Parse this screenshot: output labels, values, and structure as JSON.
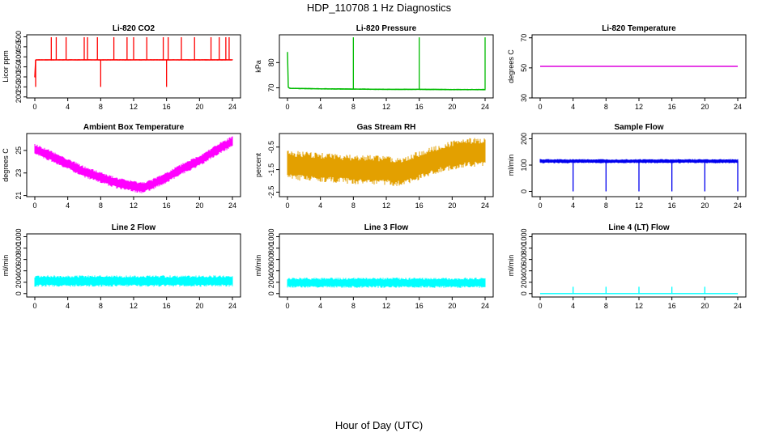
{
  "page": {
    "title": "HDP_110708  1 Hz Diagnostics",
    "xlabel": "Hour of Day (UTC)"
  },
  "chart_data": [
    {
      "type": "line",
      "title": "Li-820 CO2",
      "ylabel": "Licor ppm",
      "color": "#ff0000",
      "xlim": [
        0,
        24
      ],
      "ylim": [
        195,
        510
      ],
      "x_ticks": [
        0,
        4,
        8,
        12,
        16,
        20,
        24
      ],
      "y_ticks": [
        200,
        250,
        300,
        350,
        400,
        450,
        500
      ],
      "series": [
        {
          "x": [
            0,
            0.1,
            0.2,
            1,
            2,
            3,
            4,
            5,
            6,
            7,
            8,
            9,
            10,
            11,
            12,
            13,
            14,
            15,
            16,
            17,
            18,
            19,
            20,
            21,
            22,
            23,
            24
          ],
          "y": [
            300,
            385,
            385,
            385,
            385,
            385,
            385,
            385,
            385,
            385,
            385,
            385,
            385,
            385,
            385,
            385,
            385,
            385,
            385,
            385,
            385,
            385,
            385,
            385,
            385,
            385,
            385
          ]
        }
      ],
      "noise": 3,
      "spikes": [
        2,
        2.6,
        3.8,
        6,
        6.4,
        7.6,
        9.6,
        11.2,
        12,
        13.6,
        15.6,
        16.2,
        17.8,
        19.4,
        21.4,
        22.4,
        23.2,
        23.6
      ],
      "spike_to": 498,
      "drops": [
        0.1,
        8,
        16
      ],
      "drop_to": 250
    },
    {
      "type": "line",
      "title": "Li-820 Pressure",
      "ylabel": "kPa",
      "color": "#00bb00",
      "xlim": [
        0,
        24
      ],
      "ylim": [
        66,
        91
      ],
      "x_ticks": [
        0,
        4,
        8,
        12,
        16,
        20,
        24
      ],
      "y_ticks": [
        70,
        80
      ],
      "series": [
        {
          "x": [
            0,
            0.05,
            0.1,
            0.3,
            4,
            8,
            12,
            16,
            20,
            24
          ],
          "y": [
            84,
            70,
            70.2,
            69.8,
            69.6,
            69.5,
            69.4,
            69.4,
            69.3,
            69.3
          ]
        }
      ],
      "noise": 0.3,
      "spikes": [
        8,
        16,
        24
      ],
      "spike_to": 90,
      "drops": [],
      "drop_to": null
    },
    {
      "type": "line",
      "title": "Li-820 Temperature",
      "ylabel": "degrees C",
      "color": "#dd00dd",
      "xlim": [
        0,
        24
      ],
      "ylim": [
        30,
        72
      ],
      "x_ticks": [
        0,
        4,
        8,
        12,
        16,
        20,
        24
      ],
      "y_ticks": [
        30,
        50,
        70
      ],
      "series": [
        {
          "x": [
            0,
            24
          ],
          "y": [
            51,
            51
          ]
        }
      ],
      "noise": 0,
      "spikes": [],
      "spike_to": null,
      "drops": [],
      "drop_to": null
    },
    {
      "type": "line",
      "title": "Ambient Box Temperature",
      "ylabel": "degrees C",
      "color": "#ff00ff",
      "xlim": [
        0,
        24
      ],
      "ylim": [
        20.9,
        26.5
      ],
      "x_ticks": [
        0,
        4,
        8,
        12,
        16,
        20,
        24
      ],
      "y_ticks": [
        21,
        23,
        25
      ],
      "series": [
        {
          "x": [
            0,
            2,
            4,
            6,
            8,
            10,
            12,
            13,
            14,
            16,
            18,
            20,
            22,
            24
          ],
          "y": [
            25.1,
            24.5,
            23.8,
            23.1,
            22.6,
            22.1,
            21.8,
            21.7,
            21.9,
            22.6,
            23.4,
            24.1,
            25.0,
            25.8
          ]
        }
      ],
      "noise": 0.5,
      "spikes": [],
      "spike_to": null,
      "drops": [],
      "drop_to": null
    },
    {
      "type": "line",
      "title": "Gas Stream RH",
      "ylabel": "percent",
      "color": "#e3a000",
      "xlim": [
        0,
        24
      ],
      "ylim": [
        -2.7,
        0.1
      ],
      "x_ticks": [
        0,
        4,
        8,
        12,
        16,
        20,
        24
      ],
      "y_ticks": [
        -2.5,
        -1.5,
        -0.5
      ],
      "series": [
        {
          "x": [
            0,
            2,
            4,
            6,
            8,
            10,
            12,
            14,
            15,
            17,
            19,
            21,
            22,
            24
          ],
          "y": [
            -1.3,
            -1.35,
            -1.4,
            -1.45,
            -1.5,
            -1.5,
            -1.55,
            -1.6,
            -1.45,
            -1.2,
            -0.95,
            -0.8,
            -0.75,
            -0.75
          ]
        }
      ],
      "noise": 0.65,
      "spikes": [],
      "spike_to": null,
      "drops": [],
      "drop_to": null
    },
    {
      "type": "line",
      "title": "Sample Flow",
      "ylabel": "ml/min",
      "color": "#0000ee",
      "xlim": [
        0,
        24
      ],
      "ylim": [
        -20,
        220
      ],
      "x_ticks": [
        0,
        4,
        8,
        12,
        16,
        20,
        24
      ],
      "y_ticks": [
        0,
        100,
        200
      ],
      "series": [
        {
          "x": [
            0,
            24
          ],
          "y": [
            115,
            115
          ]
        }
      ],
      "noise": 8,
      "spikes": [],
      "spike_to": null,
      "drops": [
        4,
        8,
        12,
        16,
        20,
        24
      ],
      "drop_to": 0
    },
    {
      "type": "line",
      "title": "Line 2 Flow",
      "ylabel": "ml/min",
      "color": "#00ffff",
      "xlim": [
        0,
        24
      ],
      "ylim": [
        -60,
        1050
      ],
      "x_ticks": [
        0,
        4,
        8,
        12,
        16,
        20,
        24
      ],
      "y_ticks": [
        0,
        200,
        400,
        600,
        800,
        1000
      ],
      "series": [
        {
          "x": [
            0,
            24
          ],
          "y": [
            220,
            220
          ]
        }
      ],
      "noise": 100,
      "spikes": [],
      "spike_to": null,
      "drops": [],
      "drop_to": null
    },
    {
      "type": "line",
      "title": "Line 3 Flow",
      "ylabel": "ml/min",
      "color": "#00ffff",
      "xlim": [
        0,
        24
      ],
      "ylim": [
        -60,
        1050
      ],
      "x_ticks": [
        0,
        4,
        8,
        12,
        16,
        20,
        24
      ],
      "y_ticks": [
        0,
        200,
        400,
        600,
        800,
        1000
      ],
      "series": [
        {
          "x": [
            0,
            24
          ],
          "y": [
            190,
            190
          ]
        }
      ],
      "noise": 90,
      "spikes": [],
      "spike_to": null,
      "drops": [],
      "drop_to": null
    },
    {
      "type": "line",
      "title": "Line 4 (LT) Flow",
      "ylabel": "ml/min",
      "color": "#00ffff",
      "xlim": [
        0,
        24
      ],
      "ylim": [
        -60,
        1050
      ],
      "x_ticks": [
        0,
        4,
        8,
        12,
        16,
        20,
        24
      ],
      "y_ticks": [
        0,
        200,
        400,
        600,
        800,
        1000
      ],
      "series": [
        {
          "x": [
            0,
            24
          ],
          "y": [
            0,
            0
          ]
        }
      ],
      "noise": 2,
      "spikes": [
        4,
        8,
        12,
        16,
        20
      ],
      "spike_to": 120,
      "drops": [],
      "drop_to": null
    }
  ]
}
